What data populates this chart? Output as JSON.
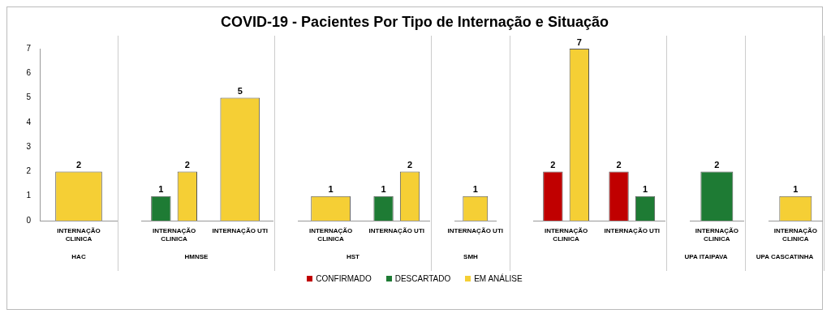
{
  "chart_data": [
    {
      "type": "bar",
      "xlabel": "HAC",
      "categories": [
        "INTERNAÇÃO CLINICA"
      ],
      "ylim": [
        0,
        7
      ],
      "yticks": [
        0,
        1,
        2,
        3,
        4,
        5,
        6,
        7
      ],
      "grid": false,
      "legend": "bottom",
      "data_labels": true,
      "series": [
        {
          "name": "CONFIRMADO",
          "color": "#c00000",
          "values": [
            null
          ]
        },
        {
          "name": "DESCARTADO",
          "color": "#1e7b34",
          "values": [
            null
          ]
        },
        {
          "name": "EM ANÁLISE",
          "color": "#f5cf35",
          "values": [
            2
          ]
        }
      ]
    },
    {
      "type": "bar",
      "xlabel": "HMNSE",
      "categories": [
        "INTERNAÇÃO CLINICA",
        "INTERNAÇÃO UTI"
      ],
      "ylim": [
        0,
        7
      ],
      "tick_labels": "x",
      "grid": false,
      "data_labels": true,
      "series": [
        {
          "color": "#c00000",
          "values": [
            null,
            null
          ]
        },
        {
          "color": "#1e7b34",
          "values": [
            1,
            null
          ]
        },
        {
          "color": "#f5cf35",
          "values": [
            2,
            5
          ]
        }
      ]
    },
    {
      "type": "bar",
      "title": "COVID-19 - Pacientes Por Tipo de Internação e Situação",
      "xlabel": "HST",
      "categories": [
        "INTERNAÇÃO CLINICA",
        "INTERNAÇÃO UTI"
      ],
      "ylim": [
        0,
        7
      ],
      "tick_labels": "x",
      "grid": false,
      "data_labels": true,
      "series": [
        {
          "color": "#c00000",
          "values": [
            null,
            null
          ]
        },
        {
          "color": "#1e7b34",
          "values": [
            null,
            1
          ]
        },
        {
          "color": "#f5cf35",
          "values": [
            1,
            2
          ]
        }
      ]
    },
    {
      "type": "bar",
      "xlabel": "SMH",
      "categories": [
        "INTERNAÇÃO UTI"
      ],
      "ylim": [
        0,
        7
      ],
      "tick_labels": "x",
      "grid": false,
      "data_labels": true,
      "series": [
        {
          "color": "#c00000",
          "values": [
            null
          ]
        },
        {
          "color": "#1e7b34",
          "values": [
            null
          ]
        },
        {
          "color": "#f5cf35",
          "values": [
            1
          ]
        }
      ]
    },
    {
      "type": "bar",
      "categories": [
        "INTERNAÇÃO CLINICA",
        "INTERNAÇÃO UTI"
      ],
      "ylim": [
        0,
        7
      ],
      "tick_labels": "x",
      "grid": false,
      "data_labels": true,
      "series": [
        {
          "color": "#c00000",
          "values": [
            2,
            2
          ]
        },
        {
          "color": "#1e7b34",
          "values": [
            null,
            1
          ]
        },
        {
          "color": "#f5cf35",
          "values": [
            7,
            null
          ]
        }
      ]
    },
    {
      "type": "bar",
      "xlabel": "UPA ITAIPAVA",
      "categories": [
        "INTERNAÇÃO CLINICA"
      ],
      "ylim": [
        0,
        7
      ],
      "tick_labels": "x",
      "grid": false,
      "data_labels": true,
      "series": [
        {
          "color": "#c00000",
          "values": [
            null
          ]
        },
        {
          "color": "#1e7b34",
          "values": [
            2
          ]
        },
        {
          "color": "#f5cf35",
          "values": [
            null
          ]
        }
      ]
    },
    {
      "type": "bar",
      "xlabel": "UPA CASCATINHA",
      "categories": [
        "INTERNAÇÃO CLINICA"
      ],
      "ylim": [
        0,
        7
      ],
      "tick_labels": "x",
      "grid": false,
      "data_labels": true,
      "series": [
        {
          "color": "#c00000",
          "values": [
            null
          ]
        },
        {
          "color": "#1e7b34",
          "values": [
            null
          ]
        },
        {
          "color": "#f5cf35",
          "values": [
            1
          ]
        }
      ]
    }
  ]
}
